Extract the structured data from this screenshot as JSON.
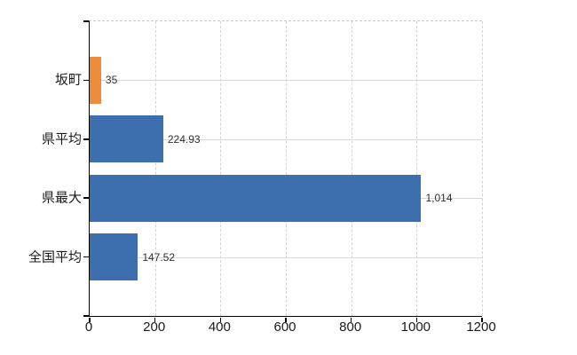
{
  "chart_data": {
    "type": "bar",
    "orientation": "horizontal",
    "title": "",
    "categories": [
      "坂町",
      "県平均",
      "県最大",
      "全国平均"
    ],
    "values": [
      35,
      224.93,
      1014,
      147.52
    ],
    "value_labels": [
      "35",
      "224.93",
      "1,014",
      "147.52"
    ],
    "bar_colors": [
      "#ec8b38",
      "#3d6fae",
      "#3d6fae",
      "#3d6fae"
    ],
    "xlim": [
      0,
      1200
    ],
    "x_ticks": [
      "0",
      "200",
      "400",
      "600",
      "800",
      "1000",
      "1200"
    ],
    "grid": "vertical dashed + horizontal category lines",
    "legend": "none"
  },
  "colors": {
    "background": "#ffffff",
    "bar_orange": "#ec8b38",
    "bar_blue": "#3d6fae",
    "axis_line": "#000000",
    "vertical_gridline": "#d6d2d6",
    "horizontal_gridline": "#d3dad3",
    "value_label_text": "#303030",
    "axis_label_text": "#1a1a1a"
  }
}
